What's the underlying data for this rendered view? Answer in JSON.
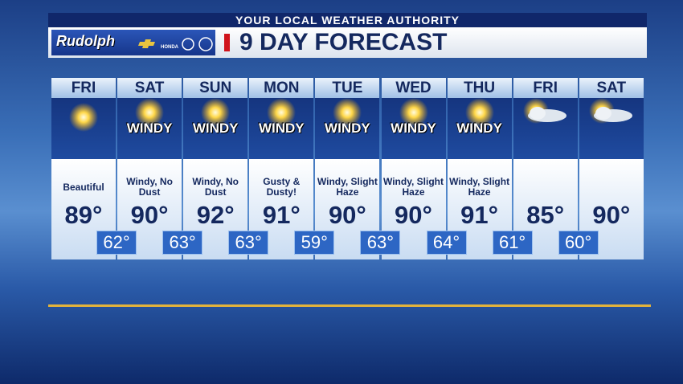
{
  "header": {
    "tagline": "YOUR LOCAL WEATHER AUTHORITY",
    "title": "9 DAY FORECAST",
    "sponsor": "Rudolph",
    "brand": "HONDA"
  },
  "days": [
    {
      "name": "FRI",
      "icon": "sun",
      "condition": "Beautiful",
      "high": "89°",
      "low": "62°"
    },
    {
      "name": "SAT",
      "icon": "sun",
      "badge": "WINDY",
      "condition": "Windy, No Dust",
      "high": "90°",
      "low": "63°"
    },
    {
      "name": "SUN",
      "icon": "sun",
      "badge": "WINDY",
      "condition": "Windy, No Dust",
      "high": "92°",
      "low": "63°"
    },
    {
      "name": "MON",
      "icon": "sun",
      "badge": "WINDY",
      "condition": "Gusty & Dusty!",
      "high": "91°",
      "low": "59°"
    },
    {
      "name": "TUE",
      "icon": "sun",
      "badge": "WINDY",
      "condition": "Windy, Slight Haze",
      "high": "90°",
      "low": "63°"
    },
    {
      "name": "WED",
      "icon": "sun",
      "badge": "WINDY",
      "condition": "Windy, Slight Haze",
      "high": "90°",
      "low": "64°"
    },
    {
      "name": "THU",
      "icon": "sun",
      "badge": "WINDY",
      "condition": "Windy, Slight Haze",
      "high": "91°",
      "low": "61°"
    },
    {
      "name": "FRI",
      "icon": "partly-cloudy",
      "high": "85°",
      "low": "60°"
    },
    {
      "name": "SAT",
      "icon": "partly-cloudy",
      "high": "90°"
    }
  ]
}
